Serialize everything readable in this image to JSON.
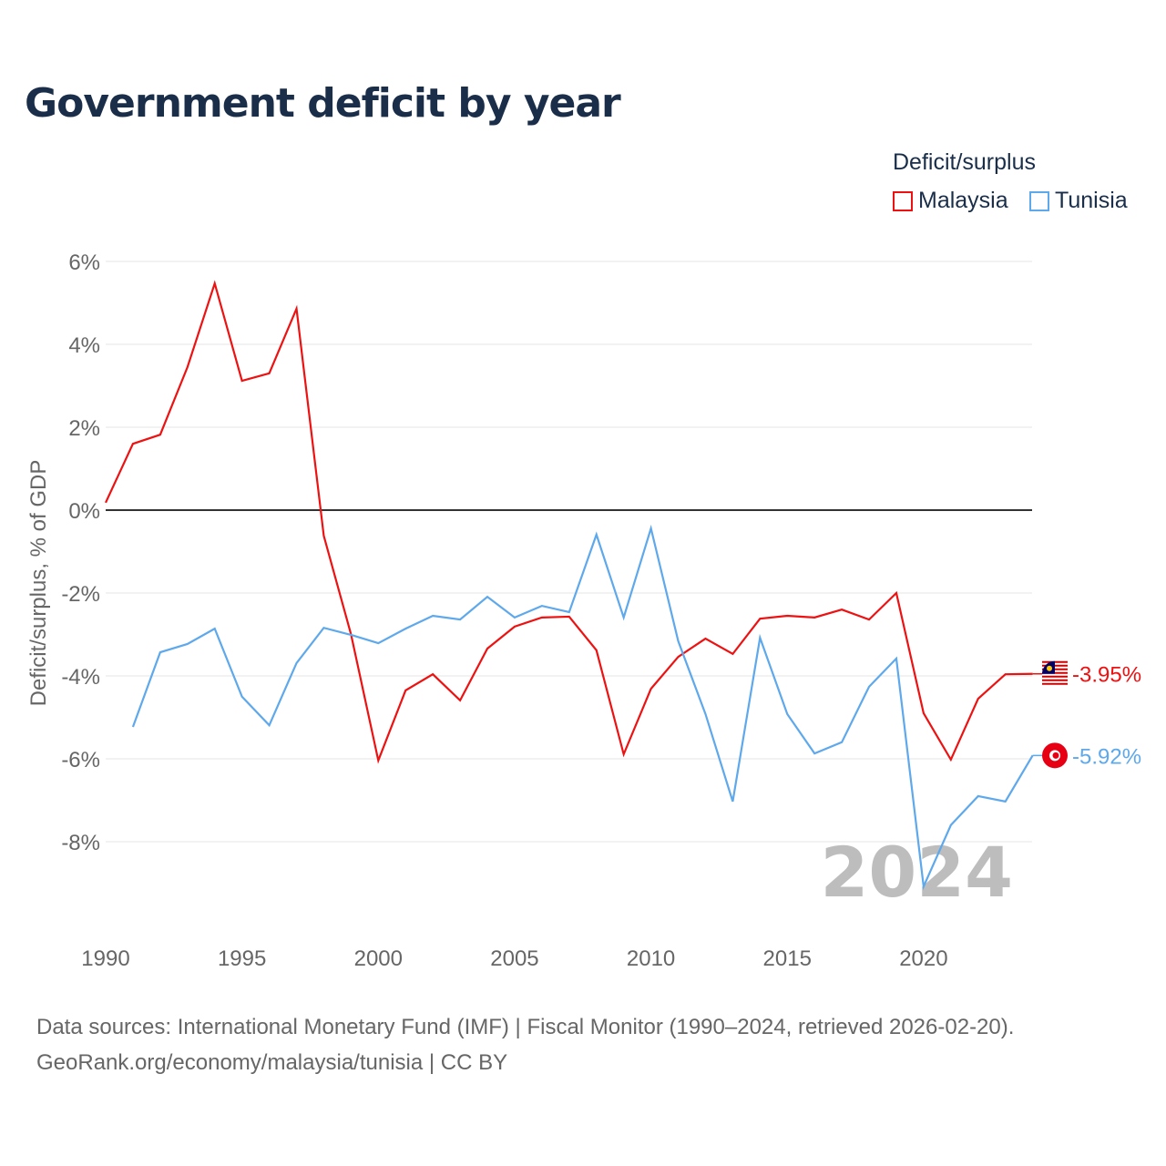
{
  "title": "Government deficit by year",
  "legend": {
    "title": "Deficit/surplus",
    "items": [
      {
        "name": "Malaysia",
        "color": "#ee1111"
      },
      {
        "name": "Tunisia",
        "color": "#5ea8ec"
      }
    ]
  },
  "source": {
    "line1": "Data sources: International Monetary Fund (IMF) | Fiscal Monitor (1990–2024, retrieved 2026-02-20).",
    "line2": "GeoRank.org/economy/malaysia/tunisia | CC BY"
  },
  "chart_data": {
    "type": "line",
    "title": "Government deficit by year",
    "ylabel": "Deficit/surplus, % of GDP",
    "xlabel": "",
    "ylim": [
      -10,
      6
    ],
    "xlim": [
      1990,
      2024
    ],
    "yticks": [
      6,
      4,
      2,
      0,
      -2,
      -4,
      -6,
      -8
    ],
    "ytick_labels": [
      "6%",
      "4%",
      "2%",
      "0%",
      "-2%",
      "-4%",
      "-6%",
      "-8%"
    ],
    "xticks": [
      1990,
      1995,
      2000,
      2005,
      2010,
      2015,
      2020
    ],
    "xtick_labels": [
      "1990",
      "1995",
      "2000",
      "2005",
      "2010",
      "2015",
      "2020"
    ],
    "year_watermark": "2024",
    "grid": true,
    "legend_position": "top-right",
    "series": [
      {
        "name": "Malaysia",
        "color": "#ee1111",
        "end_label": "-3.95%",
        "x": [
          1990,
          1991,
          1992,
          1993,
          1994,
          1995,
          1996,
          1997,
          1998,
          1999,
          2000,
          2001,
          2002,
          2003,
          2004,
          2005,
          2006,
          2007,
          2008,
          2009,
          2010,
          2011,
          2012,
          2013,
          2014,
          2015,
          2016,
          2017,
          2018,
          2019,
          2020,
          2021,
          2022,
          2023,
          2024
        ],
        "values": [
          0.18,
          1.6,
          1.82,
          3.45,
          5.47,
          3.12,
          3.3,
          4.86,
          -0.62,
          -3.0,
          -6.04,
          -4.35,
          -3.96,
          -4.59,
          -3.34,
          -2.81,
          -2.59,
          -2.57,
          -3.38,
          -5.89,
          -4.31,
          -3.54,
          -3.1,
          -3.47,
          -2.62,
          -2.55,
          -2.59,
          -2.4,
          -2.64,
          -2.0,
          -4.9,
          -6.02,
          -4.55,
          -3.96,
          -3.95
        ]
      },
      {
        "name": "Tunisia",
        "color": "#5ea8ec",
        "end_label": "-5.92%",
        "x": [
          1991,
          1992,
          1993,
          1994,
          1995,
          1996,
          1997,
          1998,
          1999,
          2000,
          2001,
          2002,
          2003,
          2004,
          2005,
          2006,
          2007,
          2008,
          2009,
          2010,
          2011,
          2012,
          2013,
          2014,
          2015,
          2016,
          2017,
          2018,
          2019,
          2020,
          2021,
          2022,
          2023,
          2024
        ],
        "values": [
          -5.23,
          -3.43,
          -3.23,
          -2.86,
          -4.5,
          -5.19,
          -3.69,
          -2.84,
          -3.01,
          -3.21,
          -2.86,
          -2.55,
          -2.64,
          -2.09,
          -2.59,
          -2.31,
          -2.46,
          -0.59,
          -2.59,
          -0.44,
          -3.16,
          -4.92,
          -7.03,
          -3.08,
          -4.92,
          -5.87,
          -5.6,
          -4.26,
          -3.58,
          -9.08,
          -7.6,
          -6.9,
          -7.03,
          -5.92
        ]
      }
    ]
  }
}
